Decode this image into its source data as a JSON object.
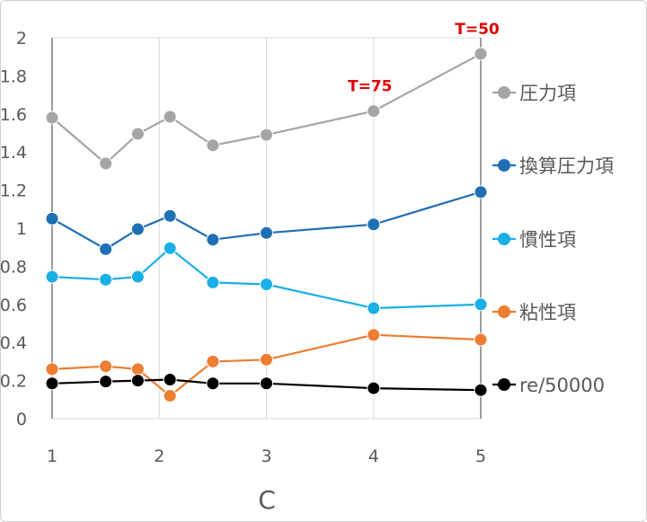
{
  "chart_data": {
    "type": "line",
    "xlabel": "C",
    "ylabel": "",
    "xlim": [
      1,
      5
    ],
    "ylim": [
      0,
      2
    ],
    "x_ticks": [
      1,
      2,
      3,
      4,
      5
    ],
    "y_ticks": [
      0,
      0.2,
      0.4,
      0.6,
      0.8,
      1,
      1.2,
      1.4,
      1.6,
      1.8,
      2
    ],
    "grid": "vertical",
    "legend_position": "right",
    "x": [
      1,
      1.5,
      1.8,
      2.1,
      2.5,
      3,
      4,
      5
    ],
    "series": [
      {
        "name": "圧力項",
        "color": "#a5a5a5",
        "values": [
          1.58,
          1.34,
          1.495,
          1.585,
          1.435,
          1.49,
          1.615,
          1.915
        ]
      },
      {
        "name": "換算圧力項",
        "color": "#1f6fb5",
        "values": [
          1.05,
          0.89,
          0.995,
          1.065,
          0.94,
          0.975,
          1.02,
          1.19
        ]
      },
      {
        "name": "慣性項",
        "color": "#1aafe6",
        "values": [
          0.745,
          0.73,
          0.745,
          0.895,
          0.715,
          0.705,
          0.58,
          0.6
        ]
      },
      {
        "name": "粘性項",
        "color": "#ed7d31",
        "values": [
          0.26,
          0.275,
          0.26,
          0.12,
          0.3,
          0.31,
          0.44,
          0.415
        ]
      },
      {
        "name": "re/50000",
        "color": "#000000",
        "values": [
          0.185,
          0.195,
          0.2,
          0.205,
          0.185,
          0.185,
          0.16,
          0.15
        ]
      }
    ],
    "annotations": [
      {
        "text": "T=75",
        "x": 4,
        "y": 1.615
      },
      {
        "text": "T=50",
        "x": 5,
        "y": 1.915
      }
    ]
  }
}
